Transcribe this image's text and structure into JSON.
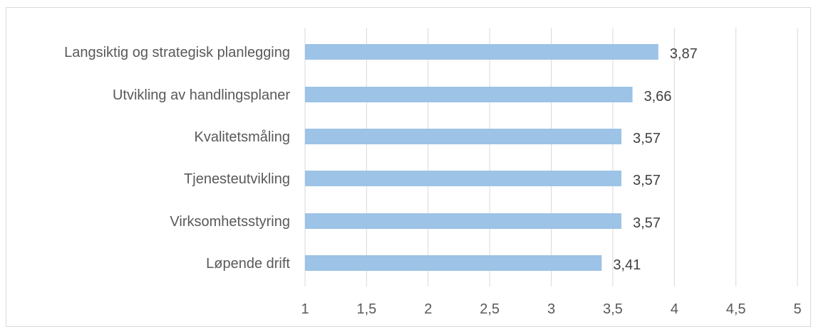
{
  "chart_data": {
    "type": "bar",
    "orientation": "horizontal",
    "title": "",
    "xlabel": "",
    "ylabel": "",
    "categories": [
      "Langsiktig og strategisk planlegging",
      "Utvikling av handlingsplaner",
      "Kvalitetsmåling",
      "Tjenesteutvikling",
      "Virksomhetsstyring",
      "Løpende drift"
    ],
    "values": [
      3.87,
      3.66,
      3.57,
      3.57,
      3.57,
      3.41
    ],
    "data_labels": [
      "3,87",
      "3,66",
      "3,57",
      "3,57",
      "3,57",
      "3,41"
    ],
    "xlim": [
      1,
      5
    ],
    "ticks": [
      1,
      1.5,
      2,
      2.5,
      3,
      3.5,
      4,
      4.5,
      5
    ],
    "tick_labels": [
      "1",
      "1,5",
      "2",
      "2,5",
      "3",
      "3,5",
      "4",
      "4,5",
      "5"
    ],
    "grid": true,
    "legend": "none",
    "bar_color": "#9dc3e6",
    "grid_color": "#d9d9d9",
    "text_color": "#595959"
  }
}
